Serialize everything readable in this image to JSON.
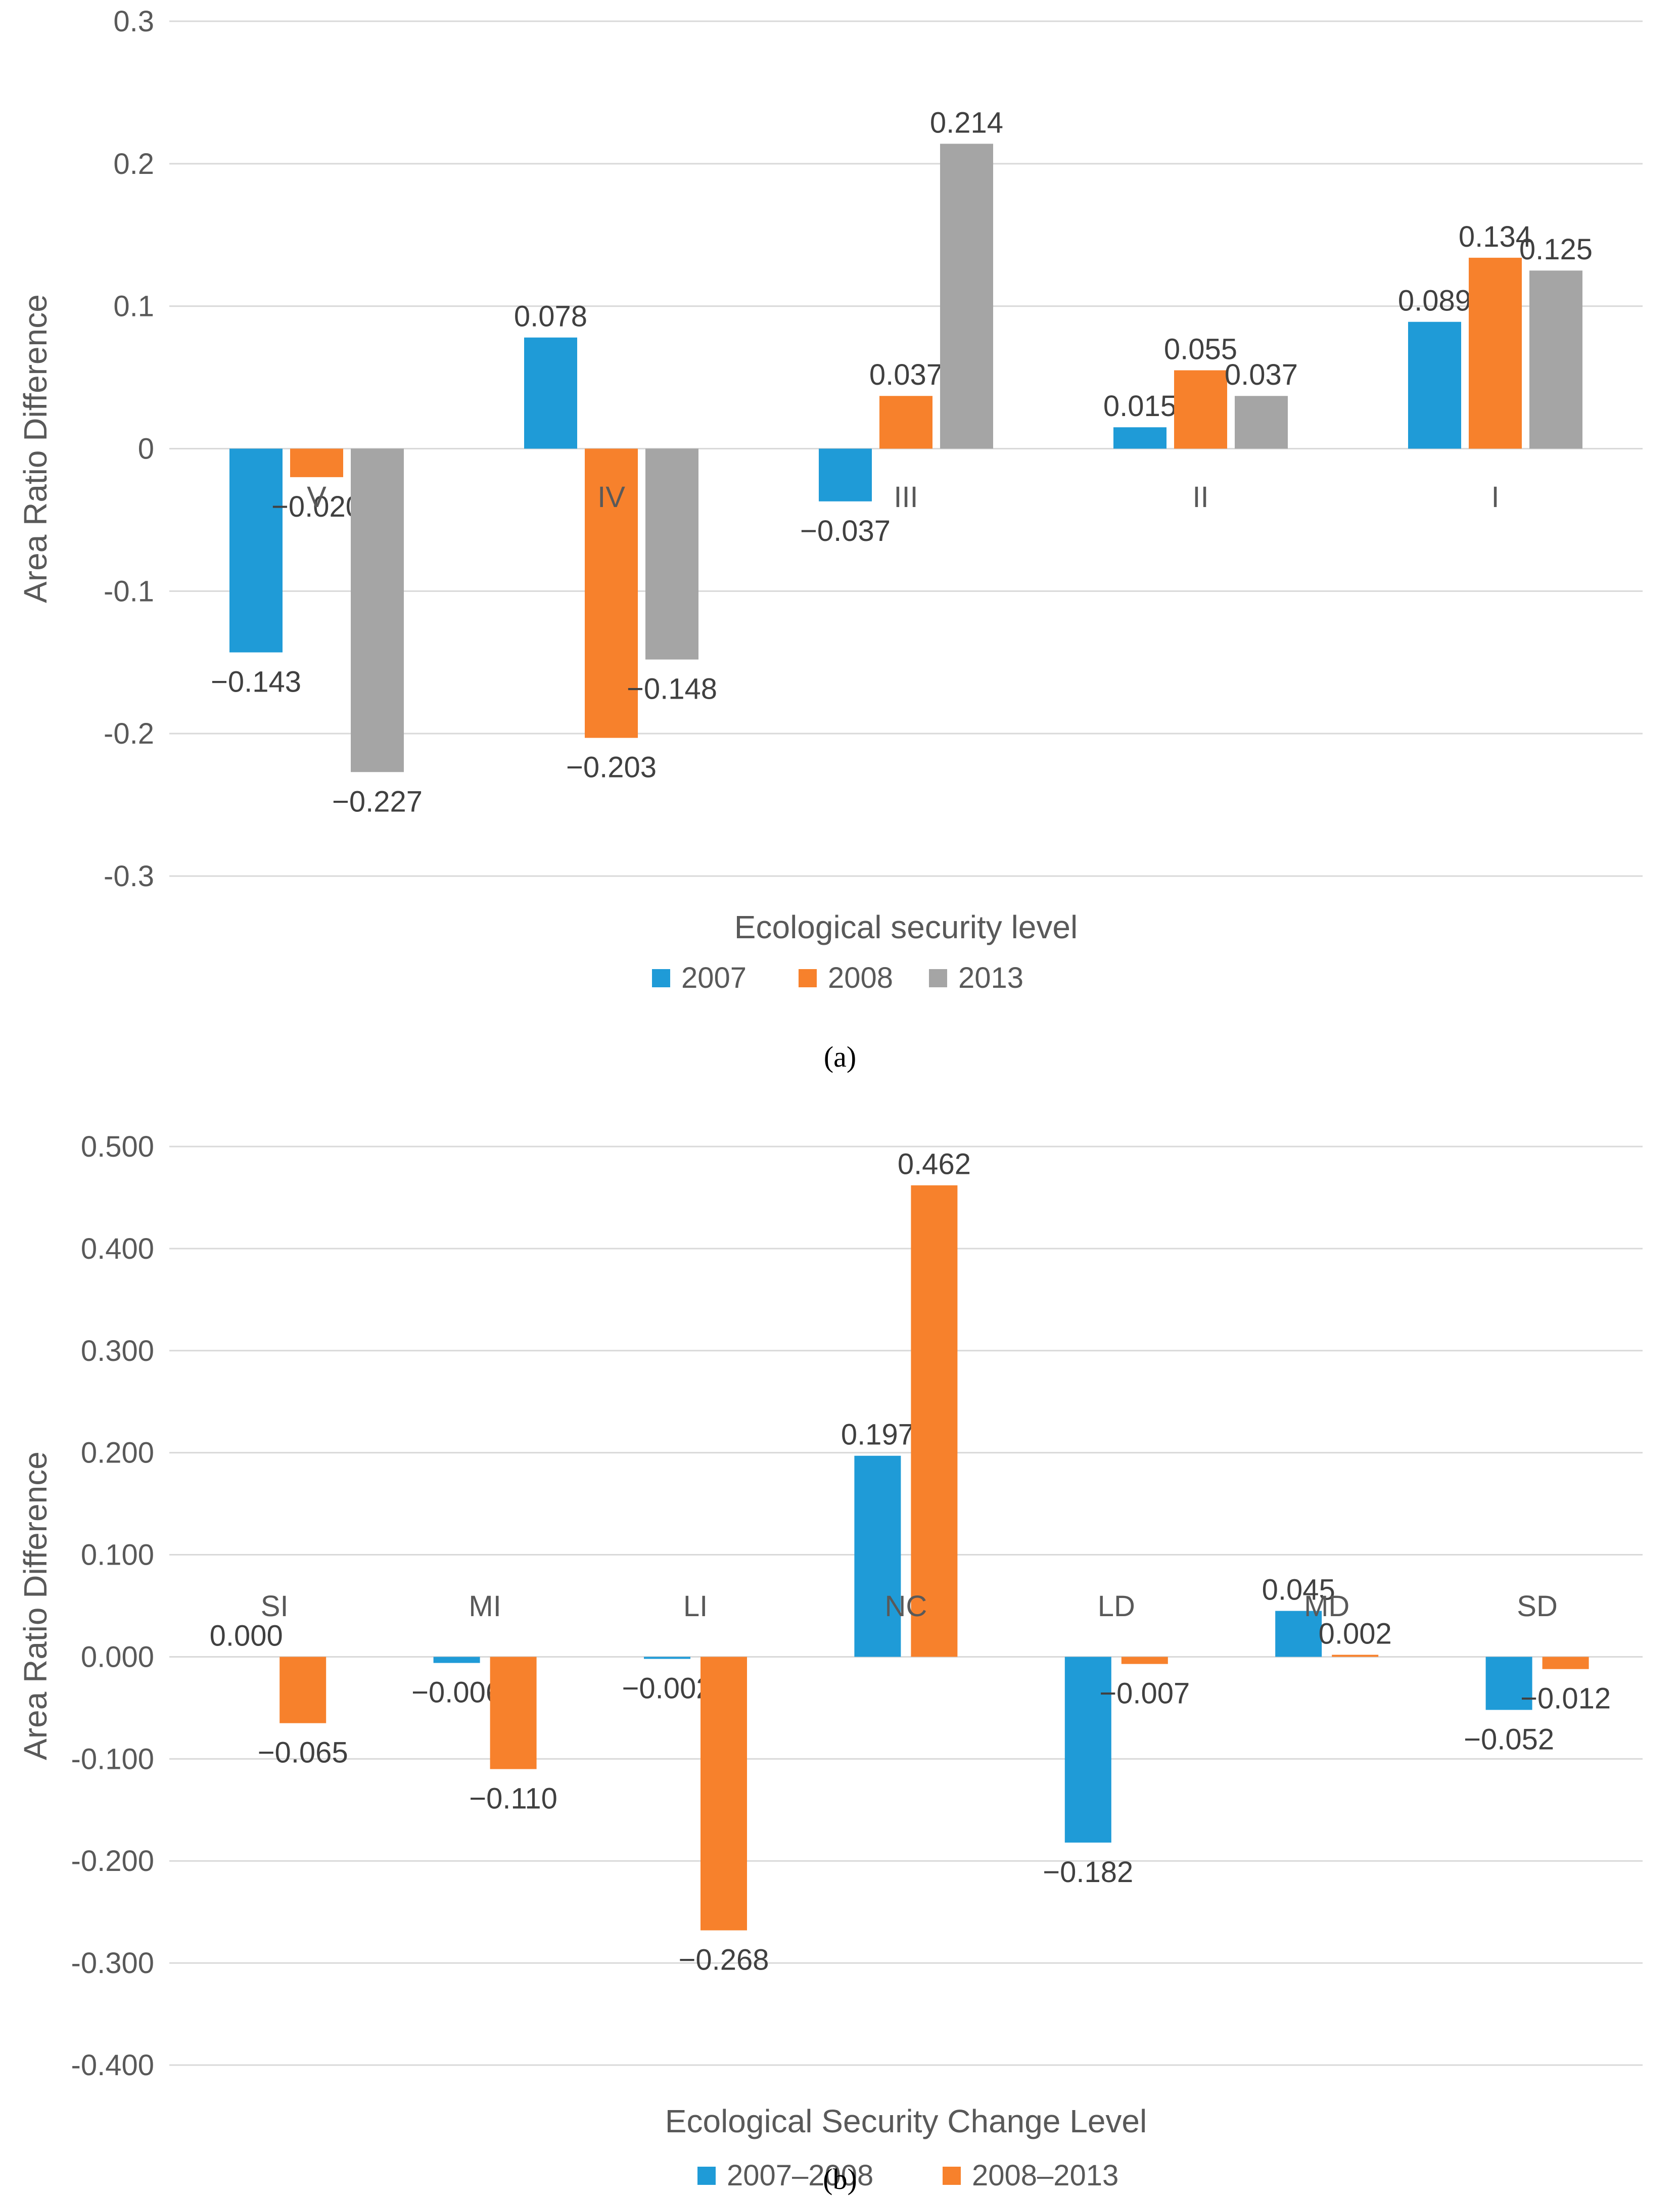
{
  "colors": {
    "blue": "#1f9bd7",
    "orange": "#f7812c",
    "gray": "#a5a5a5",
    "grid": "#d9d9d9",
    "text": "#595959"
  },
  "chart_data": [
    {
      "type": "bar",
      "title": "",
      "xlabel": "Ecological security level",
      "ylabel": "Area Ratio Difference",
      "caption": "(a)",
      "categories": [
        "V",
        "IV",
        "III",
        "II",
        "I"
      ],
      "ylim": [
        -0.3,
        0.3
      ],
      "yticks": [
        0.3,
        0.2,
        0.1,
        0,
        -0.1,
        -0.2,
        -0.3
      ],
      "ytick_labels": [
        "0.3",
        "0.2",
        "0.1",
        "0",
        "-0.1",
        "-0.2",
        "-0.3"
      ],
      "series": [
        {
          "name": "2007",
          "color": "#1f9bd7",
          "values": [
            -0.143,
            0.078,
            -0.037,
            0.015,
            0.089
          ],
          "labels": [
            "−0.143",
            "0.078",
            "−0.037",
            "0.015",
            "0.089"
          ]
        },
        {
          "name": "2008",
          "color": "#f7812c",
          "values": [
            -0.02,
            -0.203,
            0.037,
            0.055,
            0.134
          ],
          "labels": [
            "−0.020",
            "−0.203",
            "0.037",
            "0.055",
            "0.134"
          ]
        },
        {
          "name": "2013",
          "color": "#a5a5a5",
          "values": [
            -0.227,
            -0.148,
            0.214,
            0.037,
            0.125
          ],
          "labels": [
            "−0.227",
            "−0.148",
            "0.214",
            "0.037",
            "0.125"
          ]
        }
      ],
      "legend": "bottom"
    },
    {
      "type": "bar",
      "title": "",
      "xlabel": "Ecological Security Change Level",
      "ylabel": "Area Ratio Difference",
      "caption": "(b)",
      "categories": [
        "SI",
        "MI",
        "LI",
        "NC",
        "LD",
        "MD",
        "SD"
      ],
      "ylim": [
        -0.4,
        0.5
      ],
      "yticks": [
        0.5,
        0.4,
        0.3,
        0.2,
        0.1,
        0,
        -0.1,
        -0.2,
        -0.3,
        -0.4
      ],
      "ytick_labels": [
        "0.500",
        "0.400",
        "0.300",
        "0.200",
        "0.100",
        "0.000",
        "-0.100",
        "-0.200",
        "-0.300",
        "-0.400"
      ],
      "series": [
        {
          "name": "2007–2008",
          "color": "#1f9bd7",
          "values": [
            0.0,
            -0.006,
            -0.002,
            0.197,
            -0.182,
            0.045,
            -0.052
          ],
          "labels": [
            "0.000",
            "−0.006",
            "−0.002",
            "0.197",
            "−0.182",
            "0.045",
            "−0.052"
          ]
        },
        {
          "name": "2008–2013",
          "color": "#f7812c",
          "values": [
            -0.065,
            -0.11,
            -0.268,
            0.462,
            -0.007,
            0.002,
            -0.012
          ],
          "labels": [
            "−0.065",
            "−0.110",
            "−0.268",
            "0.462",
            "−0.007",
            "0.002",
            "−0.012"
          ]
        }
      ],
      "legend": "bottom"
    }
  ]
}
